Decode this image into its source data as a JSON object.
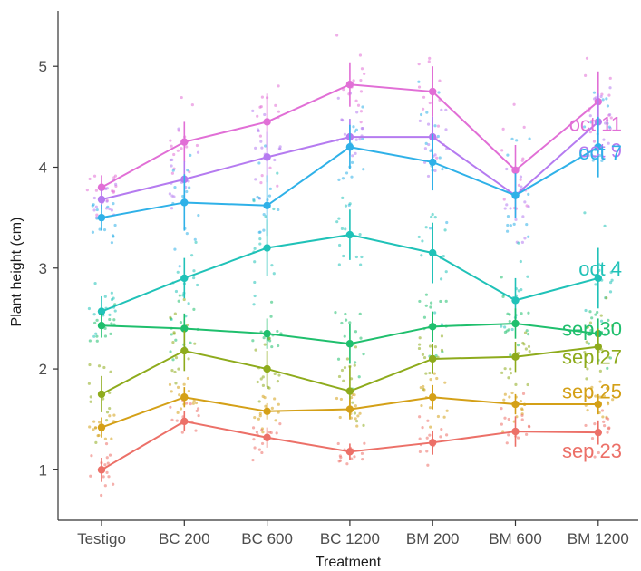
{
  "chart_data": {
    "type": "line",
    "xlabel": "Treatment",
    "ylabel": "Plant height (cm)",
    "categories": [
      "Testigo",
      "BC 200",
      "BC 600",
      "BC 1200",
      "BM 200",
      "BM 600",
      "BM 1200"
    ],
    "yticks": [
      1,
      2,
      3,
      4,
      5
    ],
    "ylim": [
      0.5,
      5.55
    ],
    "grid": false,
    "legend": "direct labels at right end of lines",
    "series": [
      {
        "name": "oct 11",
        "color": "#e16fd6",
        "values": [
          3.8,
          4.25,
          4.45,
          4.82,
          4.75,
          3.97,
          4.65
        ]
      },
      {
        "name": "oct 9",
        "color": "#b57bf0",
        "values": [
          3.68,
          3.88,
          4.1,
          4.3,
          4.3,
          3.72,
          4.45
        ]
      },
      {
        "name": "oct 7",
        "color": "#2fb1e8",
        "values": [
          3.5,
          3.65,
          3.62,
          4.2,
          4.05,
          3.72,
          4.2
        ]
      },
      {
        "name": "oct 4",
        "color": "#20c2b8",
        "values": [
          2.57,
          2.9,
          3.2,
          3.33,
          3.15,
          2.68,
          2.9
        ]
      },
      {
        "name": "sep 30",
        "color": "#1fbf6d",
        "values": [
          2.43,
          2.4,
          2.35,
          2.25,
          2.42,
          2.45,
          2.35
        ]
      },
      {
        "name": "sep 27",
        "color": "#8eab1c",
        "values": [
          1.75,
          2.18,
          2.0,
          1.78,
          2.1,
          2.12,
          2.22
        ]
      },
      {
        "name": "sep 25",
        "color": "#d4a017",
        "values": [
          1.42,
          1.72,
          1.58,
          1.6,
          1.72,
          1.65,
          1.65
        ]
      },
      {
        "name": "sep 23",
        "color": "#ec7068",
        "values": [
          1.0,
          1.48,
          1.32,
          1.18,
          1.27,
          1.38,
          1.37
        ]
      }
    ],
    "errors": [
      [
        0.12,
        0.2,
        0.28,
        0.22,
        0.25,
        0.25,
        0.3
      ],
      [
        0.1,
        0.18,
        0.25,
        0.18,
        0.2,
        0.22,
        0.28
      ],
      [
        0.13,
        0.28,
        0.3,
        0.22,
        0.28,
        0.22,
        0.3
      ],
      [
        0.15,
        0.2,
        0.28,
        0.25,
        0.3,
        0.22,
        0.3
      ],
      [
        0.12,
        0.15,
        0.15,
        0.2,
        0.15,
        0.15,
        0.15
      ],
      [
        0.18,
        0.2,
        0.18,
        0.25,
        0.15,
        0.15,
        0.18
      ],
      [
        0.1,
        0.1,
        0.08,
        0.1,
        0.12,
        0.1,
        0.1
      ],
      [
        0.12,
        0.1,
        0.1,
        0.08,
        0.12,
        0.15,
        0.12
      ]
    ]
  }
}
